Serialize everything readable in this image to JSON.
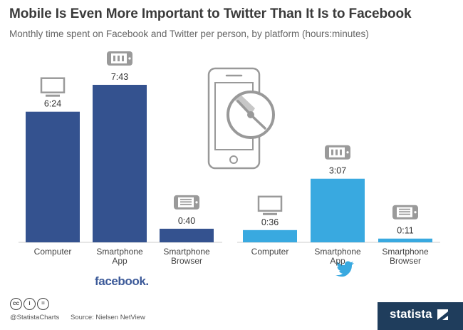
{
  "title": "Mobile Is Even More Important to Twitter Than It Is to Facebook",
  "subtitle": "Monthly time spent on Facebook and Twitter per person, by platform (hours:minutes)",
  "footer": {
    "handle": "@StatistaCharts",
    "source": "Source: Nielsen NetView",
    "brand": "statista"
  },
  "chart_data": [
    {
      "type": "bar",
      "brand_logo": "facebook.",
      "color": "#34528f",
      "categories": [
        "Computer",
        "Smartphone App",
        "Smartphone Browser"
      ],
      "category_lines": [
        [
          "Computer"
        ],
        [
          "Smartphone",
          "App"
        ],
        [
          "Smartphone",
          "Browser"
        ]
      ],
      "icons": [
        "computer-icon",
        "smartphone-app-icon",
        "smartphone-browser-icon"
      ],
      "values": [
        384,
        463,
        40
      ],
      "value_labels": [
        "6:24",
        "7:43",
        "0:40"
      ],
      "unit": "minutes"
    },
    {
      "type": "bar",
      "brand_logo": "twitter-bird",
      "color": "#39a9e0",
      "categories": [
        "Computer",
        "Smartphone App",
        "Smartphone Browser"
      ],
      "category_lines": [
        [
          "Computer"
        ],
        [
          "Smartphone",
          "App"
        ],
        [
          "Smartphone",
          "Browser"
        ]
      ],
      "icons": [
        "computer-icon",
        "smartphone-app-icon",
        "smartphone-browser-icon"
      ],
      "values": [
        36,
        187,
        11
      ],
      "value_labels": [
        "0:36",
        "3:07",
        "0:11"
      ],
      "unit": "minutes"
    }
  ]
}
